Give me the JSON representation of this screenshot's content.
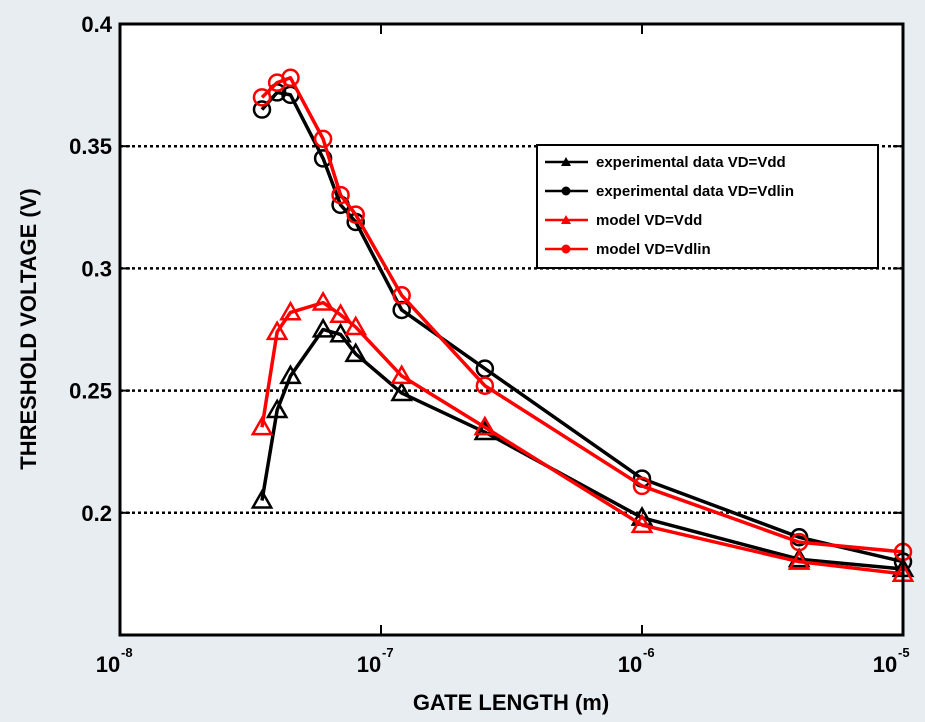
{
  "chart_data": {
    "type": "line",
    "xscale": "log",
    "xlim": [
      1e-08,
      1e-05
    ],
    "ylim": [
      0.15,
      0.4
    ],
    "grid": "horizontal dotted at y ticks",
    "xlabel": "GATE LENGTH (m)",
    "ylabel": "THRESHOLD VOLTAGE (V)",
    "x_ticks": [
      {
        "base": "10",
        "exp": "-8",
        "value": 1e-08
      },
      {
        "base": "10",
        "exp": "-7",
        "value": 1e-07
      },
      {
        "base": "10",
        "exp": "-6",
        "value": 1e-06
      },
      {
        "base": "10",
        "exp": "-5",
        "value": 1e-05
      }
    ],
    "y_ticks": [
      {
        "label": "0.2",
        "value": 0.2
      },
      {
        "label": "0.25",
        "value": 0.25
      },
      {
        "label": "0.3",
        "value": 0.3
      },
      {
        "label": "0.35",
        "value": 0.35
      },
      {
        "label": "0.4",
        "value": 0.4
      }
    ],
    "legend_position": "upper-right",
    "series": [
      {
        "name": "experimental data VD=Vdd",
        "color": "#000000",
        "marker": "triangle",
        "x": [
          3.5e-08,
          4e-08,
          4.5e-08,
          6e-08,
          7e-08,
          8e-08,
          1.2e-07,
          2.5e-07,
          1e-06,
          4e-06,
          1e-05
        ],
        "y": [
          0.205,
          0.242,
          0.256,
          0.275,
          0.273,
          0.265,
          0.249,
          0.233,
          0.198,
          0.181,
          0.177
        ]
      },
      {
        "name": "experimental data VD=Vdlin",
        "color": "#000000",
        "marker": "circle",
        "x": [
          3.5e-08,
          4e-08,
          4.5e-08,
          6e-08,
          7e-08,
          8e-08,
          1.2e-07,
          2.5e-07,
          1e-06,
          4e-06,
          1e-05
        ],
        "y": [
          0.365,
          0.372,
          0.371,
          0.345,
          0.326,
          0.319,
          0.283,
          0.259,
          0.214,
          0.19,
          0.18
        ]
      },
      {
        "name": "model VD=Vdd",
        "color": "#ff0000",
        "marker": "triangle",
        "x": [
          3.5e-08,
          4e-08,
          4.5e-08,
          6e-08,
          7e-08,
          8e-08,
          1.2e-07,
          2.5e-07,
          1e-06,
          4e-06,
          1e-05
        ],
        "y": [
          0.235,
          0.274,
          0.282,
          0.286,
          0.281,
          0.276,
          0.256,
          0.235,
          0.195,
          0.18,
          0.175
        ]
      },
      {
        "name": "model VD=Vdlin",
        "color": "#ff0000",
        "marker": "circle",
        "x": [
          3.5e-08,
          4e-08,
          4.5e-08,
          6e-08,
          7e-08,
          8e-08,
          1.2e-07,
          2.5e-07,
          1e-06,
          4e-06,
          1e-05
        ],
        "y": [
          0.37,
          0.376,
          0.378,
          0.353,
          0.33,
          0.322,
          0.289,
          0.252,
          0.211,
          0.188,
          0.184
        ]
      }
    ]
  }
}
